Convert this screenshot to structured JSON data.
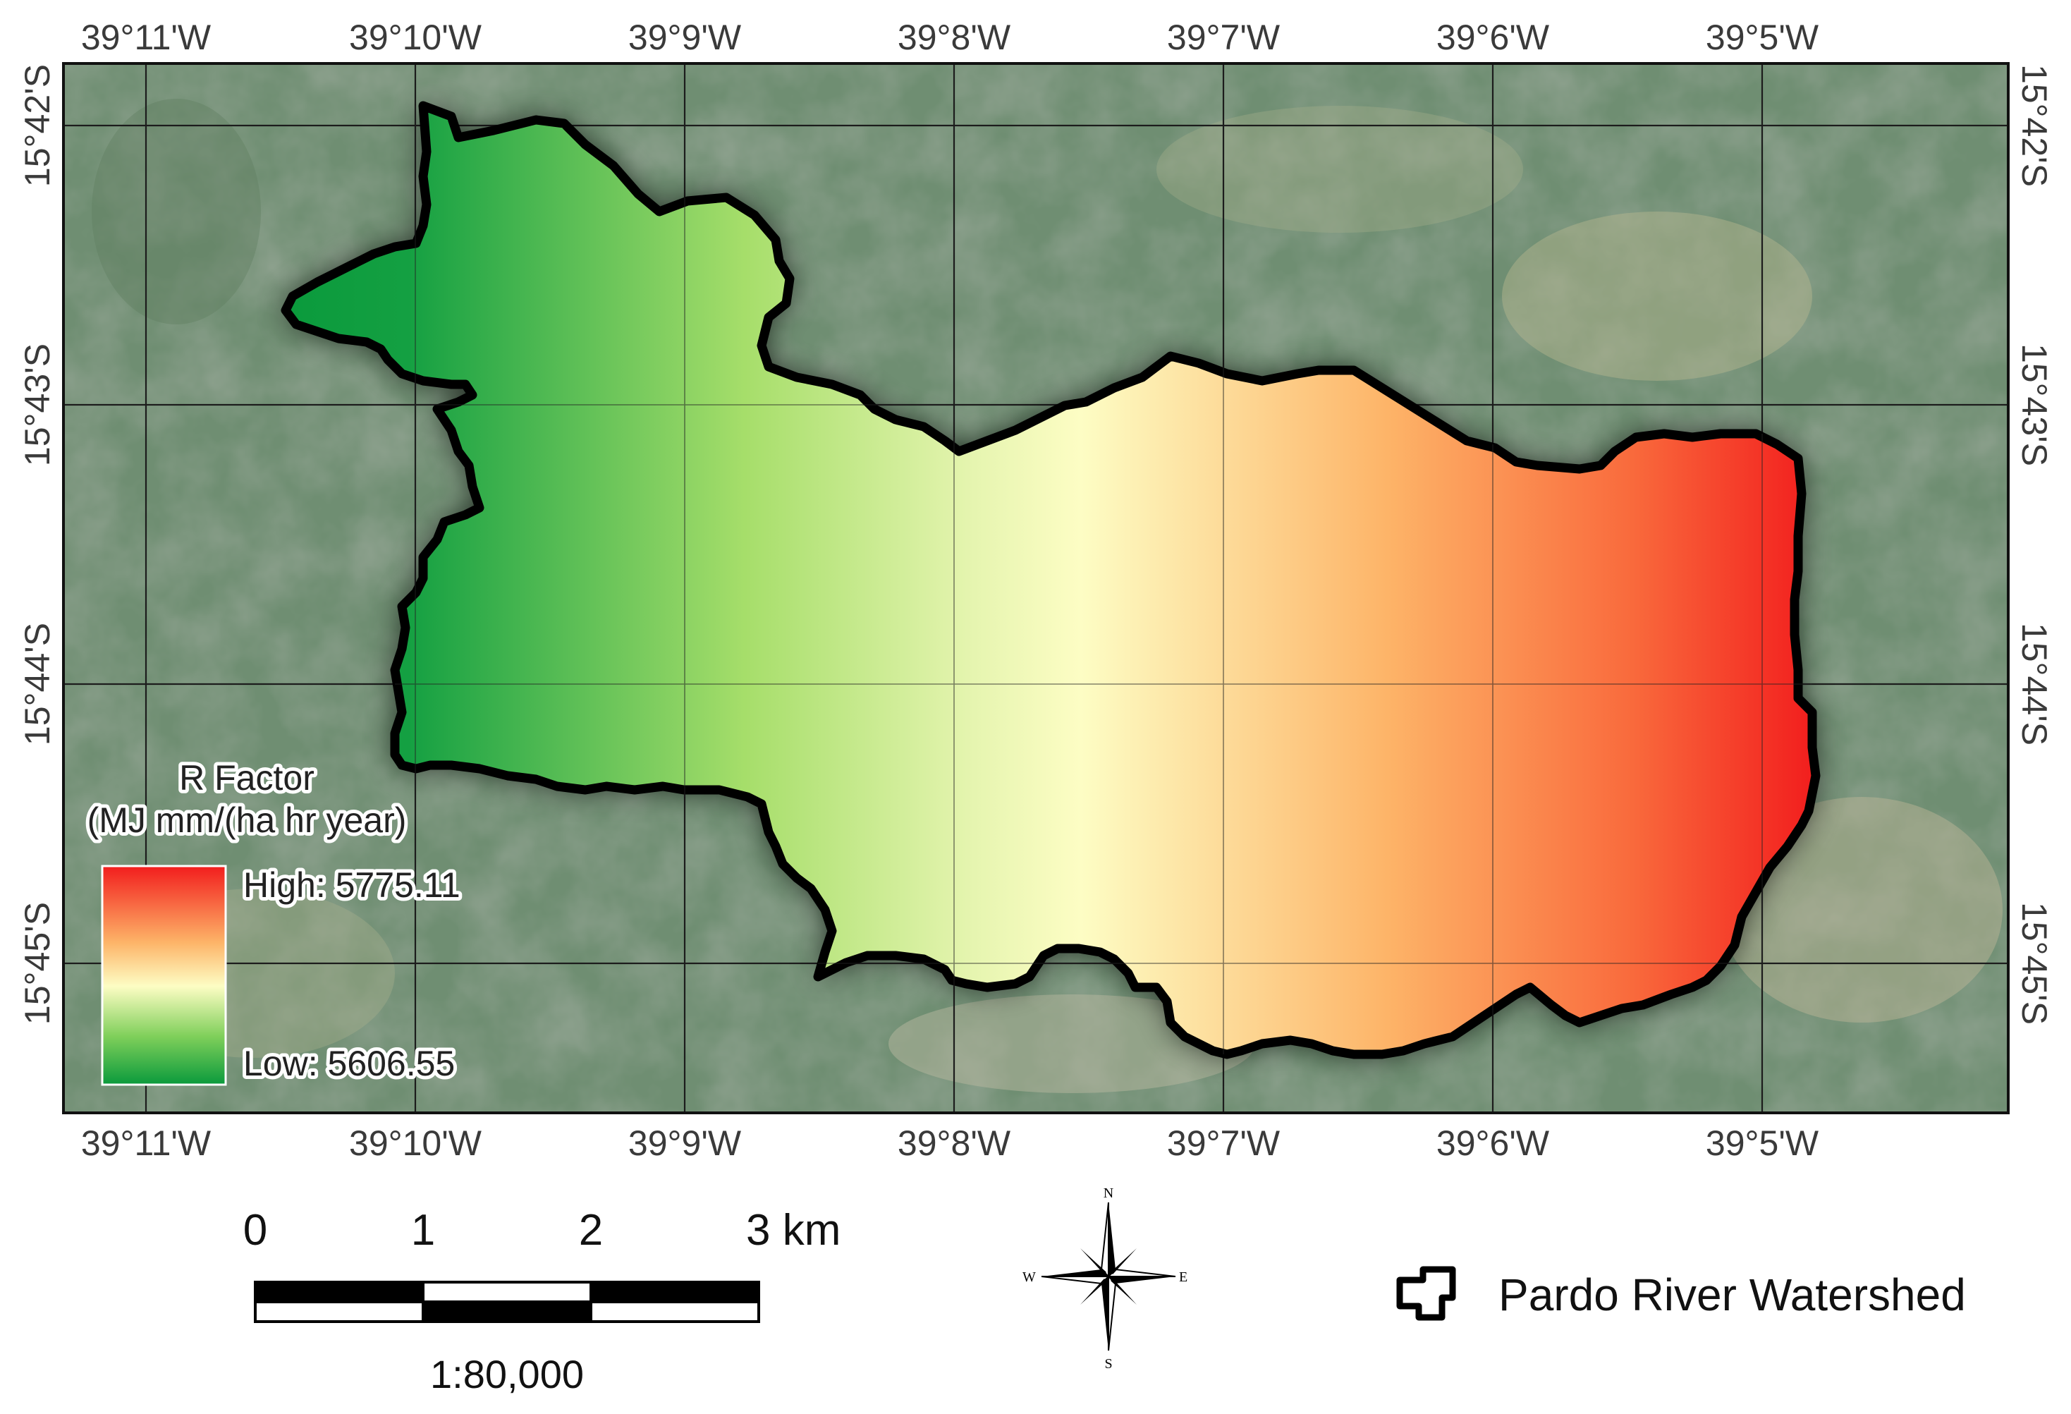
{
  "map": {
    "frame_top_labels": [
      "39°11'W",
      "39°10'W",
      "39°9'W",
      "39°8'W",
      "39°7'W",
      "39°6'W",
      "39°5'W"
    ],
    "frame_bottom_labels": [
      "39°11'W",
      "39°10'W",
      "39°9'W",
      "39°8'W",
      "39°7'W",
      "39°6'W",
      "39°5'W"
    ],
    "frame_left_labels": [
      "15°42'S",
      "15°43'S",
      "15°44'S",
      "15°45'S"
    ],
    "frame_right_labels": [
      "15°42'S",
      "15°43'S",
      "15°44'S",
      "15°45'S"
    ],
    "basemap": "satellite imagery",
    "gradient_colors": [
      "#0a9a3c",
      "#a6de6a",
      "#fdfdc4",
      "#fdb468",
      "#f21d1d"
    ]
  },
  "legend": {
    "title": "R Factor",
    "units": "(MJ mm/(ha hr year)",
    "high_label": "High: 5775.11",
    "low_label": "Low: 5606.55",
    "high_value": 5775.11,
    "low_value": 5606.55,
    "high_color": "#f21d1d",
    "low_color": "#0a9a3c"
  },
  "scalebar": {
    "ticks": [
      "0",
      "1",
      "2",
      "3 km"
    ],
    "ratio": "1:80,000"
  },
  "north_arrow": {
    "n": "N",
    "s": "S",
    "e": "E",
    "w": "W",
    "icon": "compass-rose-icon"
  },
  "feature_legend": {
    "label": "Pardo River Watershed",
    "icon": "watershed-outline-icon"
  }
}
